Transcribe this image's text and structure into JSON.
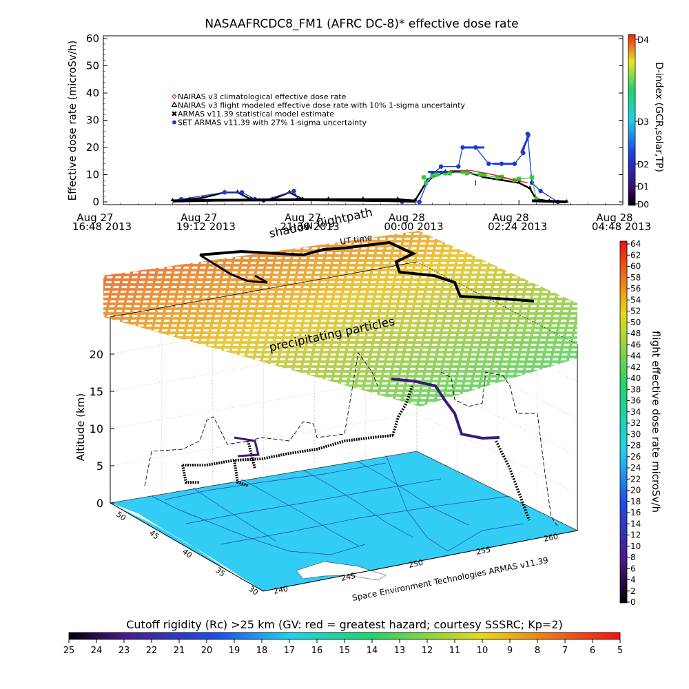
{
  "title": "NASAAFRCDC8_FM1 (AFRC DC-8)* effective dose rate",
  "top_chart": {
    "ylabel": "Effective dose rate (microSv/h)",
    "yticks": [
      "0",
      "10",
      "20",
      "30",
      "40",
      "50",
      "60"
    ],
    "xticks": [
      {
        "day": "Aug 27",
        "time": "16:48 2013"
      },
      {
        "day": "Aug 27",
        "time": "19:12 2013"
      },
      {
        "day": "Aug 27",
        "time": "21:36 2013"
      },
      {
        "day": "Aug 28",
        "time": "00:00 2013"
      },
      {
        "day": "Aug 28",
        "time": "02:24 2013"
      },
      {
        "day": "Aug 28",
        "time": "04:48 2013"
      }
    ],
    "legend": [
      {
        "label": "NAIRAS v3 climatological effective dose rate",
        "symbol": "diamond",
        "color": "#d42a2a"
      },
      {
        "label": "NAIRAS v3 flight modeled effective dose rate with 10% 1-sigma uncertainty",
        "symbol": "triangle",
        "color": "#000000"
      },
      {
        "label": "ARMAS v11.39 statistical model estimate",
        "symbol": "x",
        "color": "#33cc33"
      },
      {
        "label": "SET ARMAS v11.39 with 27% 1-sigma uncertainty",
        "symbol": "dot",
        "color": "#1a3ad6"
      }
    ],
    "dindex_label": "D-index (GCR,solar,TP)",
    "dindex_ticks": [
      "D4",
      "D3",
      "D2",
      "D1",
      "D0"
    ]
  },
  "chart_data": [
    {
      "type": "line",
      "title": "NASAAFRCDC8_FM1 (AFRC DC-8)* effective dose rate",
      "ylabel": "Effective dose rate (microSv/h)",
      "xlabel": "",
      "ylim": [
        0,
        60
      ],
      "x_unit": "hours since Aug 27 16:48 2013 UT",
      "xlim": [
        0,
        12
      ],
      "series": [
        {
          "name": "NAIRAS v3 flight modeled effective dose rate with 10% 1-sigma uncertainty",
          "color": "#000000",
          "x": [
            1.6,
            2.0,
            2.3,
            2.8,
            3.1,
            3.4,
            3.6,
            3.9,
            4.3,
            4.6,
            5.2,
            6.0,
            6.8,
            7.2,
            7.45,
            7.6,
            7.9,
            8.4,
            8.8,
            9.2,
            9.6,
            9.85,
            10.0,
            10.3,
            10.7
          ],
          "y": [
            0.5,
            1,
            1.5,
            3.5,
            3.5,
            1,
            0.5,
            1,
            3.5,
            1,
            1,
            1,
            1,
            0.5,
            7,
            9,
            11,
            11,
            9,
            8,
            7,
            5,
            1,
            0.3,
            0
          ]
        },
        {
          "name": "SET ARMAS v11.39 with 27% 1-sigma uncertainty",
          "color": "#1a3ad6",
          "x": [
            1.8,
            2.8,
            3.2,
            3.5,
            3.7,
            4.4,
            4.5,
            6.9,
            7.3,
            7.5,
            7.6,
            7.8,
            8.2,
            8.3,
            8.6,
            8.9,
            9.2,
            9.5,
            9.7,
            9.8,
            9.9,
            10.1,
            10.5
          ],
          "y": [
            1,
            3.5,
            3.5,
            1,
            0.5,
            4,
            1,
            0,
            0,
            8,
            10,
            13,
            13,
            20,
            20,
            14,
            14,
            14,
            18,
            25,
            7,
            4,
            0
          ]
        },
        {
          "name": "ARMAS v11.39 statistical model estimate",
          "color": "#33cc33",
          "x": [
            7.45,
            7.6,
            7.9,
            8.3,
            8.7,
            9.1,
            9.5,
            9.9,
            10.0
          ],
          "y": [
            7,
            9.5,
            10.5,
            11,
            10,
            9,
            8,
            9,
            1
          ]
        }
      ],
      "dindex_colorbar": [
        "D0",
        "D1",
        "D2",
        "D3",
        "D4"
      ]
    },
    {
      "type": "surface3d",
      "ylabel": "Altitude (km)",
      "zticks": [
        "0",
        "5",
        "10",
        "15",
        "20"
      ],
      "lat_ticks": [
        "50",
        "45",
        "40",
        "35",
        "30"
      ],
      "lon_ticks": [
        "240",
        "245",
        "250",
        "255",
        "260"
      ],
      "annotations": [
        "shadow flightpath",
        "UT time",
        "precipitating particles",
        "21:36 2013"
      ],
      "credit": "Space Environment Technologies ARMAS v11.39",
      "colorbar_label": "flight effective dose rate microSv/h",
      "colorbar_range": [
        0,
        64
      ],
      "colorbar_ticks": [
        "64",
        "62",
        "60",
        "58",
        "56",
        "54",
        "52",
        "50",
        "48",
        "46",
        "44",
        "42",
        "40",
        "38",
        "36",
        "34",
        "32",
        "30",
        "28",
        "26",
        "24",
        "22",
        "20",
        "18",
        "16",
        "14",
        "12",
        "10",
        "8",
        "6",
        "4",
        "2",
        "0"
      ]
    },
    {
      "type": "colorbar",
      "label": "Cutoff rigidity (Rc) >25 km (GV: red = greatest hazard; courtesy SSSRC; Kp=2)",
      "ticks": [
        "25",
        "24",
        "23",
        "22",
        "21",
        "20",
        "19",
        "18",
        "17",
        "16",
        "15",
        "14",
        "13",
        "12",
        "11",
        "10",
        "9",
        "8",
        "7",
        "6",
        "5"
      ]
    }
  ],
  "panel3d": {
    "ylabel": "Altitude (km)",
    "zticks": [
      "0",
      "5",
      "10",
      "15",
      "20"
    ],
    "lat_ticks": [
      "50",
      "45",
      "40",
      "35",
      "30"
    ],
    "lon_ticks": [
      "240",
      "245",
      "250",
      "255",
      "260"
    ],
    "label_shadow": "shadow flightpath",
    "label_time": "UT time",
    "label_precip": "precipitating particles",
    "credit": "Space Environment Technologies ARMAS v11.39",
    "colorbar_label": "flight effective dose rate microSv/h",
    "colorbar_ticks": [
      "64",
      "62",
      "60",
      "58",
      "56",
      "54",
      "52",
      "50",
      "48",
      "46",
      "44",
      "42",
      "40",
      "38",
      "36",
      "34",
      "32",
      "30",
      "28",
      "26",
      "24",
      "22",
      "20",
      "18",
      "16",
      "14",
      "12",
      "10",
      "8",
      "6",
      "4",
      "2",
      "0"
    ]
  },
  "bottom_bar": {
    "label": "Cutoff rigidity (Rc) >25 km (GV: red = greatest hazard; courtesy SSSRC; Kp=2)",
    "ticks": [
      "25",
      "24",
      "23",
      "22",
      "21",
      "20",
      "19",
      "18",
      "17",
      "16",
      "15",
      "14",
      "13",
      "12",
      "11",
      "10",
      "9",
      "8",
      "7",
      "6",
      "5"
    ]
  },
  "colors": {
    "map_fill": "#33ccf5",
    "blue": "#1a3ad6",
    "green": "#33cc33",
    "red": "#d42a2a"
  }
}
